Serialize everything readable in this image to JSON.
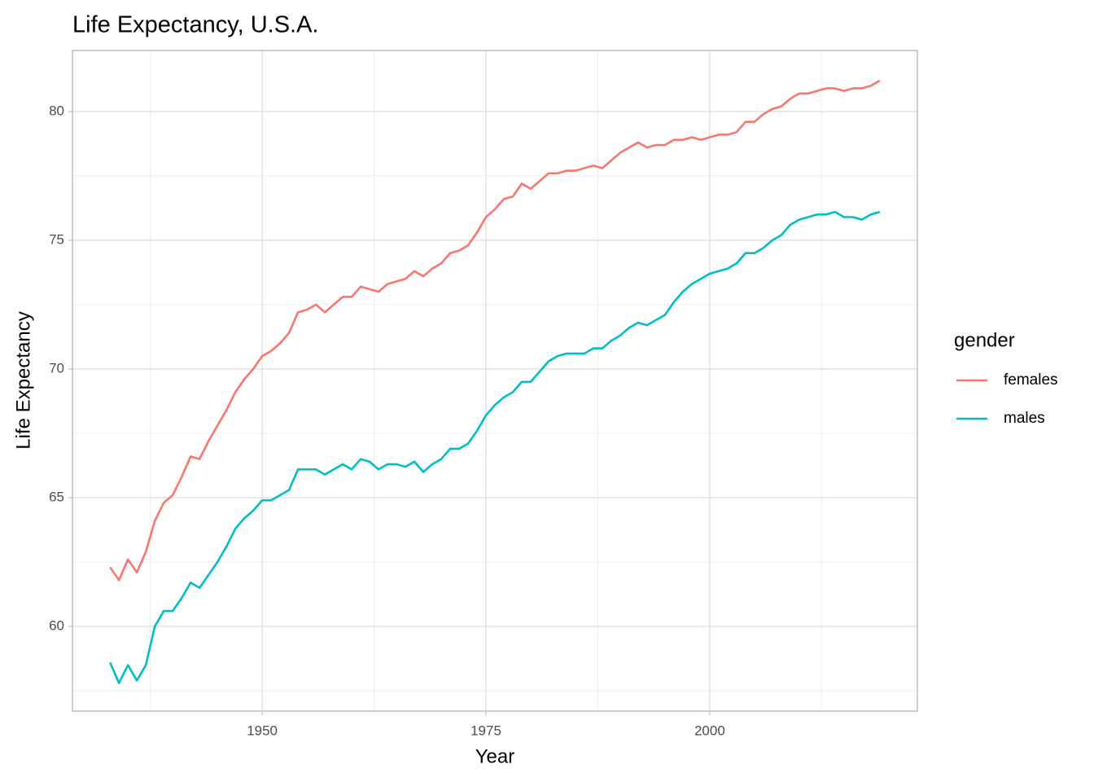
{
  "chart_data": {
    "type": "line",
    "title": "Life Expectancy, U.S.A.",
    "x_label": "Year",
    "y_label": "Life Expectancy",
    "legend_title": "gender",
    "legend_position": "right",
    "grid": true,
    "minor_grid": true,
    "x": [
      1933,
      1934,
      1935,
      1936,
      1937,
      1938,
      1939,
      1940,
      1941,
      1942,
      1943,
      1944,
      1945,
      1946,
      1947,
      1948,
      1949,
      1950,
      1951,
      1952,
      1953,
      1954,
      1955,
      1956,
      1957,
      1958,
      1959,
      1960,
      1961,
      1962,
      1963,
      1964,
      1965,
      1966,
      1967,
      1968,
      1969,
      1970,
      1971,
      1972,
      1973,
      1974,
      1975,
      1976,
      1977,
      1978,
      1979,
      1980,
      1981,
      1982,
      1983,
      1984,
      1985,
      1986,
      1987,
      1988,
      1989,
      1990,
      1991,
      1992,
      1993,
      1994,
      1995,
      1996,
      1997,
      1998,
      1999,
      2000,
      2001,
      2002,
      2003,
      2004,
      2005,
      2006,
      2007,
      2008,
      2009,
      2010,
      2011,
      2012,
      2013,
      2014,
      2015,
      2016,
      2017,
      2018,
      2019
    ],
    "series": [
      {
        "name": "females",
        "color": "#f8766d",
        "values": [
          62.3,
          61.8,
          62.6,
          62.1,
          62.9,
          64.1,
          64.8,
          65.1,
          65.8,
          66.6,
          66.5,
          67.2,
          67.8,
          68.4,
          69.1,
          69.6,
          70.0,
          70.5,
          70.7,
          71.0,
          71.4,
          72.2,
          72.3,
          72.5,
          72.2,
          72.5,
          72.8,
          72.8,
          73.2,
          73.1,
          73.0,
          73.3,
          73.4,
          73.5,
          73.8,
          73.6,
          73.9,
          74.1,
          74.5,
          74.6,
          74.8,
          75.3,
          75.9,
          76.2,
          76.6,
          76.7,
          77.2,
          77.0,
          77.3,
          77.6,
          77.6,
          77.7,
          77.7,
          77.8,
          77.9,
          77.8,
          78.1,
          78.4,
          78.6,
          78.8,
          78.6,
          78.7,
          78.7,
          78.9,
          78.9,
          79.0,
          78.9,
          79.0,
          79.1,
          79.1,
          79.2,
          79.6,
          79.6,
          79.9,
          80.1,
          80.2,
          80.5,
          80.7,
          80.7,
          80.8,
          80.9,
          80.9,
          80.8,
          80.9,
          80.9,
          81.0,
          81.2
        ]
      },
      {
        "name": "males",
        "color": "#00bfc4",
        "values": [
          58.6,
          57.8,
          58.5,
          57.9,
          58.5,
          60.0,
          60.6,
          60.6,
          61.1,
          61.7,
          61.5,
          62.0,
          62.5,
          63.1,
          63.8,
          64.2,
          64.5,
          64.9,
          64.9,
          65.1,
          65.3,
          66.1,
          66.1,
          66.1,
          65.9,
          66.1,
          66.3,
          66.1,
          66.5,
          66.4,
          66.1,
          66.3,
          66.3,
          66.2,
          66.4,
          66.0,
          66.3,
          66.5,
          66.9,
          66.9,
          67.1,
          67.6,
          68.2,
          68.6,
          68.9,
          69.1,
          69.5,
          69.5,
          69.9,
          70.3,
          70.5,
          70.6,
          70.6,
          70.6,
          70.8,
          70.8,
          71.1,
          71.3,
          71.6,
          71.8,
          71.7,
          71.9,
          72.1,
          72.6,
          73.0,
          73.3,
          73.5,
          73.7,
          73.8,
          73.9,
          74.1,
          74.5,
          74.5,
          74.7,
          75.0,
          75.2,
          75.6,
          75.8,
          75.9,
          76.0,
          76.0,
          76.1,
          75.9,
          75.9,
          75.8,
          76.0,
          76.1
        ]
      }
    ],
    "xlim": [
      1928.8,
      2023.2
    ],
    "xticks": [
      1950,
      1975,
      2000
    ],
    "ylim": [
      56.71,
      82.37
    ],
    "yticks": [
      60,
      65,
      70,
      75,
      80
    ]
  }
}
